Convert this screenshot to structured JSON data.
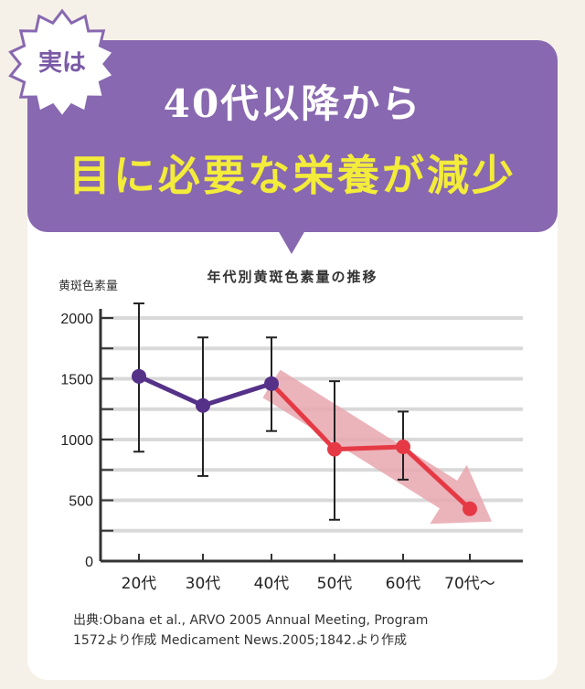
{
  "badge": {
    "text": "実は"
  },
  "headline": {
    "line1": "40代以降から",
    "line2": "目に必要な栄養が減少"
  },
  "colors": {
    "banner": "#8868b0",
    "headline_accent": "#f3ec3a",
    "series_early": "#553288",
    "series_decline": "#e53a45",
    "arrow": "#e8a7ae",
    "background": "#f5f1e8"
  },
  "chart_data": {
    "type": "line",
    "title": "年代別黄斑色素量の推移",
    "ylabel": "黄斑色素量",
    "xlabel": "",
    "ylim": [
      0,
      2000
    ],
    "yticks": [
      0,
      500,
      1000,
      1500,
      2000
    ],
    "grid": true,
    "categories": [
      "20代",
      "30代",
      "40代",
      "50代",
      "60代",
      "70代〜"
    ],
    "values": [
      1520,
      1280,
      1460,
      920,
      940,
      430
    ],
    "error_low": [
      900,
      700,
      1070,
      340,
      670,
      null
    ],
    "error_high": [
      2120,
      1840,
      1840,
      1480,
      1230,
      null
    ],
    "segments": [
      {
        "from": 0,
        "to": 2,
        "color": "#553288"
      },
      {
        "from": 2,
        "to": 5,
        "color": "#e53a45"
      }
    ],
    "trend_arrow": {
      "from_index": 2,
      "to_index": 5
    }
  },
  "source": {
    "line1": "出典:Obana et al., ARVO 2005 Annual Meeting, Program",
    "line2": "1572より作成 Medicament News.2005;1842.より作成"
  }
}
